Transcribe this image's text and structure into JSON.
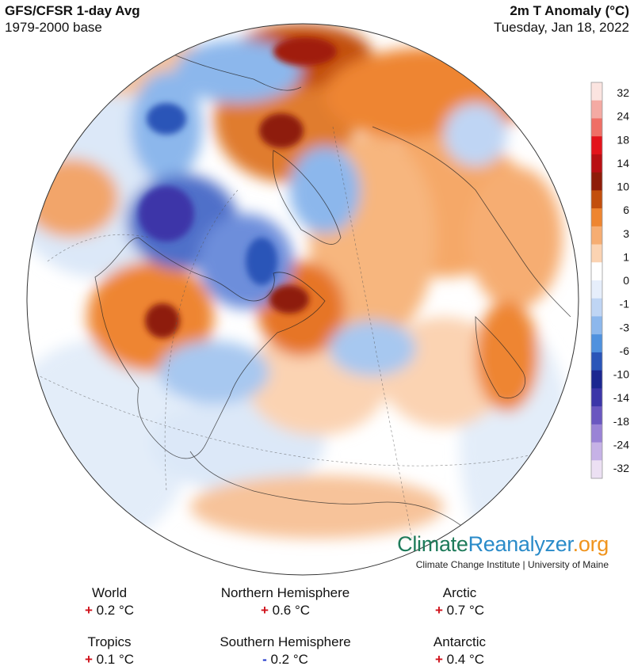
{
  "header": {
    "title": "GFS/CFSR 1-day Avg",
    "base": "1979-2000 base",
    "variable": "2m T Anomaly (°C)",
    "date": "Tuesday, Jan 18, 2022"
  },
  "legend": {
    "labels": [
      "32",
      "24",
      "18",
      "14",
      "10",
      "6",
      "3",
      "1",
      "0",
      "-1",
      "-3",
      "-6",
      "-10",
      "-14",
      "-18",
      "-24",
      "-32"
    ],
    "colors": [
      "#fbe4e0",
      "#f4aaa3",
      "#ef6f66",
      "#e3131b",
      "#b80f13",
      "#8e1c08",
      "#c24f0d",
      "#ee8530",
      "#f6ad72",
      "#fbd3b2",
      "#ffffff",
      "#e6eefb",
      "#bfd5f4",
      "#8cb7ec",
      "#4f91de",
      "#2a55b8",
      "#1b2790",
      "#3c36a8",
      "#6a57c0",
      "#9a83d6",
      "#c6b2e6",
      "#ece0f3"
    ]
  },
  "brand": {
    "logo_part1": "Climate",
    "logo_part2": "Reanalyzer",
    "logo_part3": ".org",
    "subtitle": "Climate Change Institute | University of Maine"
  },
  "stats": [
    {
      "name": "World",
      "sign": "+",
      "value": "0.2 °C"
    },
    {
      "name": "Northern Hemisphere",
      "sign": "+",
      "value": "0.6 °C"
    },
    {
      "name": "Arctic",
      "sign": "+",
      "value": "0.7 °C"
    },
    {
      "name": "Tropics",
      "sign": "+",
      "value": "0.1 °C"
    },
    {
      "name": "Southern Hemisphere",
      "sign": "-",
      "value": "0.2 °C"
    },
    {
      "name": "Antarctic",
      "sign": "+",
      "value": "0.4 °C"
    }
  ]
}
